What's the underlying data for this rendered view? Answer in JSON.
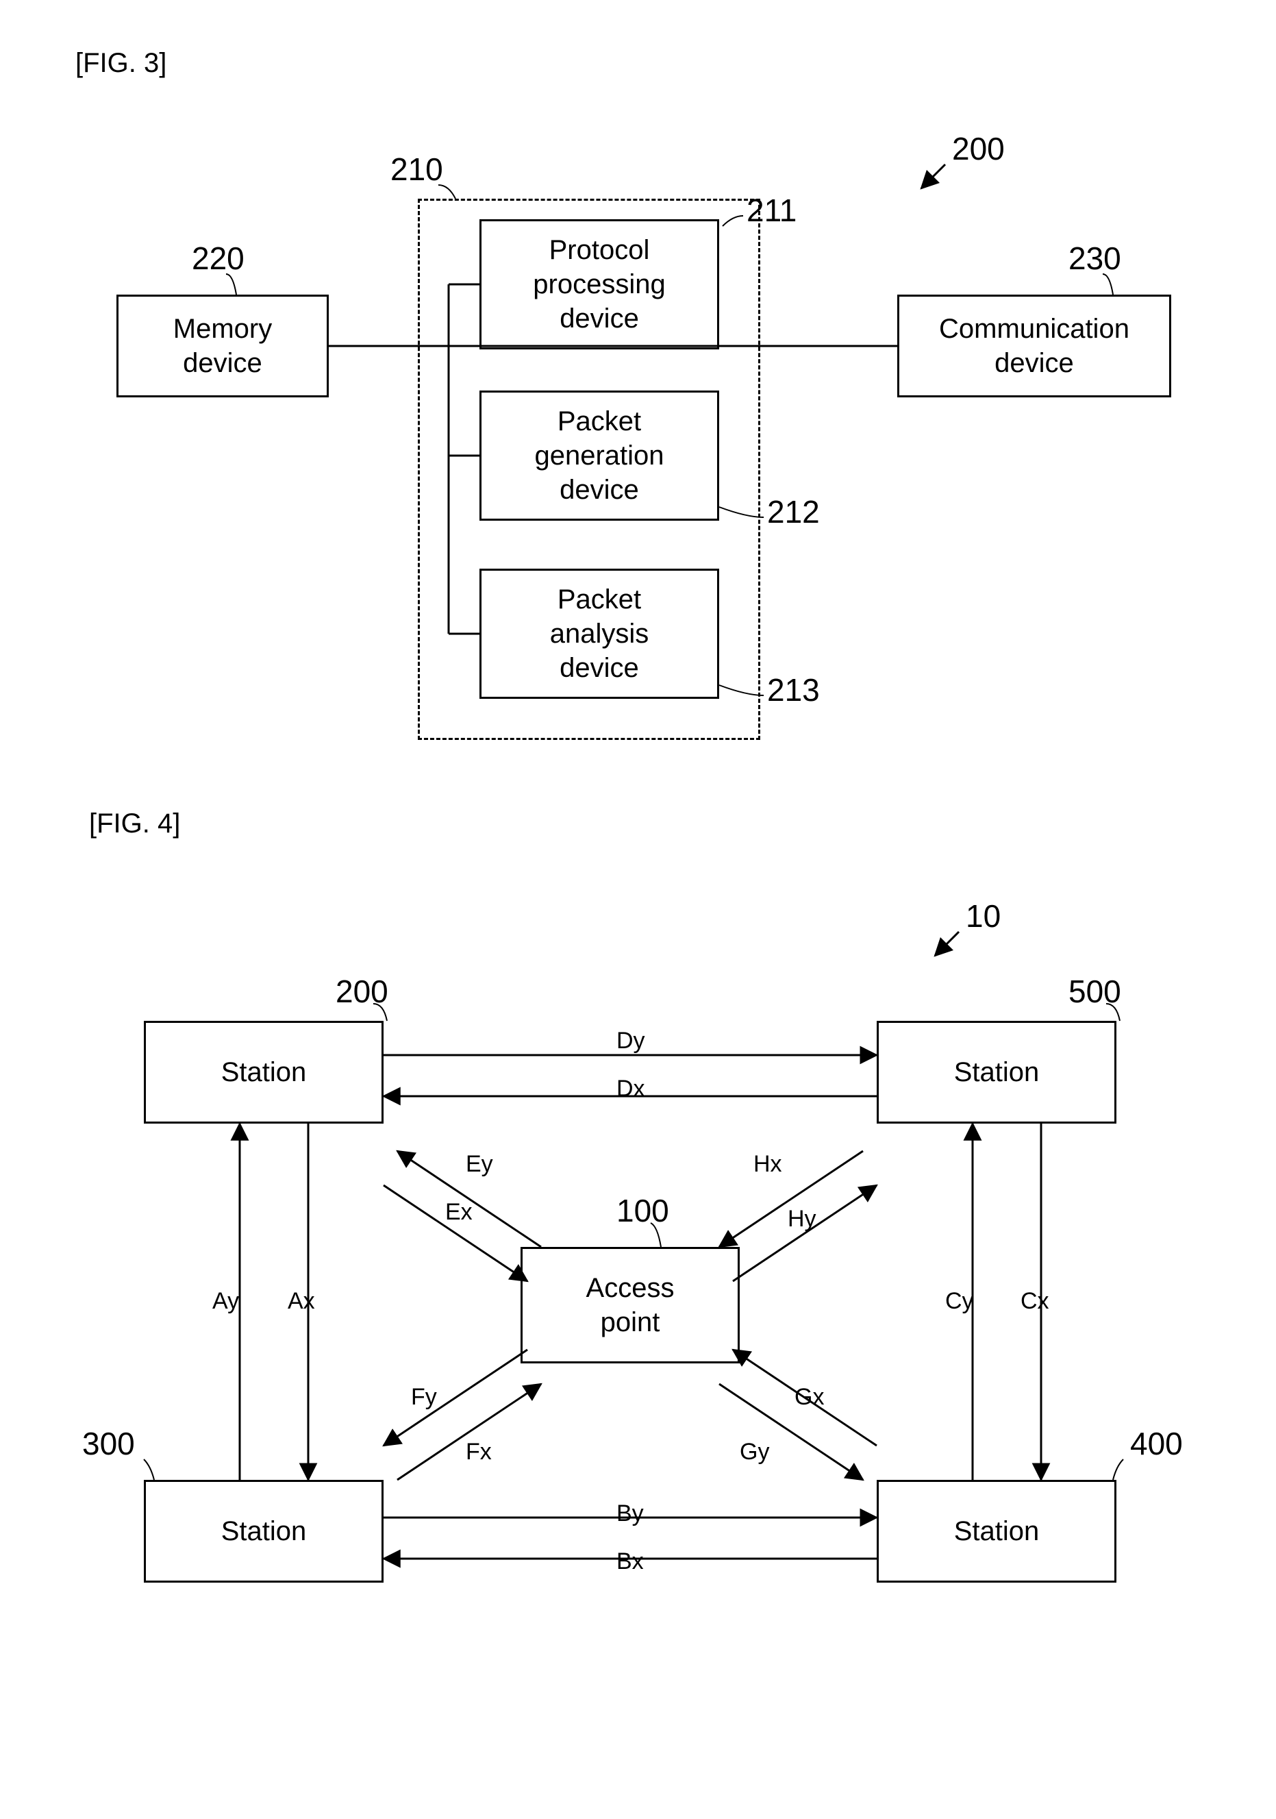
{
  "fig3": {
    "label": "[FIG. 3]",
    "system_ref": "200",
    "processor_group_ref": "210",
    "memory": {
      "ref": "220",
      "text": "Memory\ndevice"
    },
    "protocol": {
      "ref": "211",
      "text": "Protocol\nprocessing\ndevice"
    },
    "packet_gen": {
      "ref": "212",
      "text": "Packet\ngeneration\ndevice"
    },
    "packet_ana": {
      "ref": "213",
      "text": "Packet\nanalysis\ndevice"
    },
    "comm": {
      "ref": "230",
      "text": "Communication\ndevice"
    }
  },
  "fig4": {
    "label": "[FIG. 4]",
    "system_ref": "10",
    "ap": {
      "ref": "100",
      "text": "Access\npoint"
    },
    "sta200": {
      "ref": "200",
      "text": "Station"
    },
    "sta300": {
      "ref": "300",
      "text": "Station"
    },
    "sta400": {
      "ref": "400",
      "text": "Station"
    },
    "sta500": {
      "ref": "500",
      "text": "Station"
    },
    "edges": {
      "Ax": "Ax",
      "Ay": "Ay",
      "Bx": "Bx",
      "By": "By",
      "Cx": "Cx",
      "Cy": "Cy",
      "Dx": "Dx",
      "Dy": "Dy",
      "Ex": "Ex",
      "Ey": "Ey",
      "Fx": "Fx",
      "Fy": "Fy",
      "Gx": "Gx",
      "Gy": "Gy",
      "Hx": "Hx",
      "Hy": "Hy"
    }
  },
  "style": {
    "stroke": "#000000",
    "stroke_width": 3,
    "font_size_box": 40,
    "font_size_ref": 46,
    "font_size_edge": 34
  }
}
